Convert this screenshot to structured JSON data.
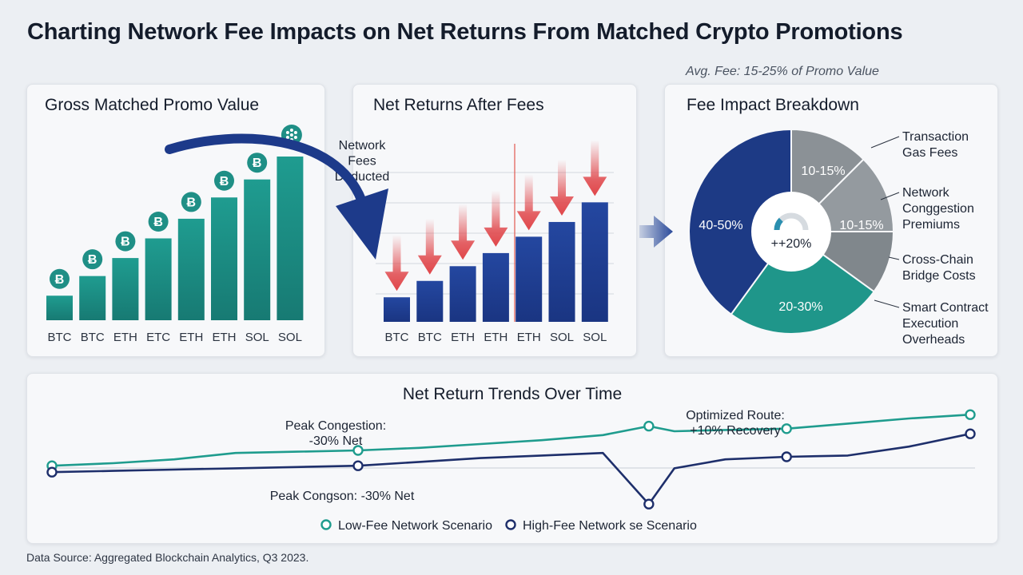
{
  "title": "Charting Network Fee Impacts on Net Returns From Matched Crypto Promotions",
  "avg_fee_note": "Avg. Fee: 15-25% of Promo Value",
  "annotation_fees_deducted": [
    "Network",
    "Fees",
    "Deducted"
  ],
  "source": "Data Source: Aggregated Blockchain Analytics, Q3 2023.",
  "colors": {
    "teal": "#1f8f86",
    "navy": "#1d3b88",
    "red": "#e0464a",
    "gray": "#8a9198",
    "curve_arrow": "#1d3a8a",
    "low_fee": "#1f9c8e",
    "high_fee": "#1e2f6b"
  },
  "icons": {
    "gross": [
      "bitcoin-icon",
      "bitcoin-icon",
      "bitcoin-icon",
      "bitcoin-icon",
      "bitcoin-icon",
      "bitcoin-icon",
      "bitcoin-icon",
      "solana-dots-icon"
    ]
  },
  "chart_data": [
    {
      "type": "bar",
      "title": "Gross Matched Promo Value",
      "categories": [
        "BTC",
        "BTC",
        "ETH",
        "ETC",
        "ETH",
        "ETH",
        "SOL",
        "SOL"
      ],
      "values": [
        15,
        27,
        38,
        50,
        62,
        75,
        86,
        100
      ],
      "ylim": [
        0,
        105
      ],
      "grid": false
    },
    {
      "type": "bar",
      "title": "Net Returns After Fees",
      "categories": [
        "BTC",
        "BTC",
        "ETH",
        "ETH",
        "ETH",
        "SOL",
        "SOL"
      ],
      "values": [
        15,
        25,
        34,
        42,
        52,
        61,
        73
      ],
      "ylim": [
        0,
        105
      ],
      "grid": true
    },
    {
      "type": "pie",
      "title": "Fee Impact Breakdown",
      "slices": [
        {
          "label": "10-15%",
          "legend": [
            "Transaction",
            "Gas Fees"
          ],
          "value": 12.5,
          "color": "#8b9196"
        },
        {
          "label": "10-15%",
          "legend": [
            "Network",
            "Conggestion",
            "Premiums"
          ],
          "value": 12.5,
          "color": "#949a9f"
        },
        {
          "label": "",
          "legend": [
            "Cross-Chain",
            "Bridge Costs"
          ],
          "value": 10,
          "color": "#80878c"
        },
        {
          "label": "20-30%",
          "legend": [
            "Smart Contract",
            "Execution",
            "Overheads"
          ],
          "value": 25,
          "color": "#1f968a"
        },
        {
          "label": "40-50%",
          "legend": [],
          "value": 40,
          "color": "#1d3a85"
        }
      ],
      "center_label": "++20%",
      "center_gauge_fraction": 0.25
    },
    {
      "type": "line",
      "title": "Net Return Trends Over Time",
      "x": [
        0,
        1,
        2,
        3,
        4,
        5,
        6,
        7,
        8,
        9,
        10,
        11,
        12,
        13,
        14,
        15,
        16,
        17,
        18,
        19
      ],
      "series": [
        {
          "name": "Low-Fee Network Scenario",
          "values": [
            48,
            50,
            53,
            58,
            59,
            60,
            62,
            65,
            68,
            72,
            79,
            75,
            76,
            77,
            81,
            85,
            88
          ],
          "x": [
            0,
            1.2,
            2.4,
            3.6,
            4.8,
            6,
            7.2,
            8.4,
            9.6,
            10.8,
            11.7,
            12.2,
            13.2,
            14.4,
            15.6,
            16.8,
            18
          ]
        },
        {
          "name": "High-Fee Network Scenario",
          "values": [
            43,
            44,
            45,
            46,
            47,
            48,
            51,
            54,
            56,
            58,
            18,
            46,
            53,
            55,
            56,
            63,
            73
          ],
          "x": [
            0,
            1.2,
            2.4,
            3.6,
            4.8,
            6,
            7.2,
            8.4,
            9.6,
            10.8,
            11.7,
            12.2,
            13.2,
            14.4,
            15.6,
            16.8,
            18
          ]
        }
      ],
      "markers": {
        "low": [
          0,
          6,
          11.7,
          14.4,
          18
        ],
        "high": [
          0,
          6,
          11.7,
          14.4,
          18
        ]
      },
      "annotations": [
        {
          "text": [
            "Peak Congestion:",
            "-30% Net"
          ]
        },
        {
          "text": [
            "Optimized Route:",
            "+10% Recovery"
          ]
        },
        {
          "text": [
            "Peak Congson: -30% Net"
          ]
        }
      ],
      "legend": [
        {
          "label": "Low-Fee Network Scenario"
        },
        {
          "label": "High-Fee Network se Scenario"
        }
      ],
      "ylim": [
        0,
        100
      ]
    }
  ]
}
